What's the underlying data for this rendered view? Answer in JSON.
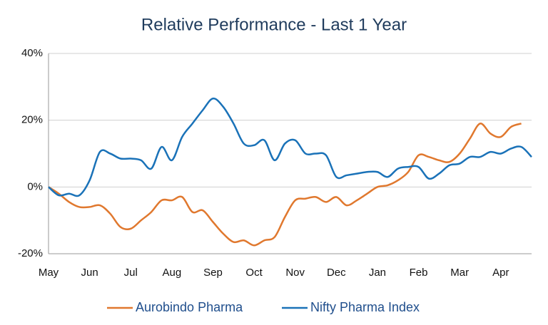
{
  "chart_data": {
    "type": "line",
    "title": "Relative Performance - Last 1 Year",
    "categories": [
      "May",
      null,
      null,
      null,
      "Jun",
      null,
      null,
      null,
      "Jul",
      null,
      null,
      null,
      "Aug",
      null,
      null,
      null,
      "Sep",
      null,
      null,
      null,
      "Oct",
      null,
      null,
      null,
      "Nov",
      null,
      null,
      null,
      "Dec",
      null,
      null,
      null,
      "Jan",
      null,
      null,
      null,
      "Feb",
      null,
      null,
      null,
      "Mar",
      null,
      null,
      null,
      "Apr",
      null,
      null,
      null
    ],
    "series": [
      {
        "name": "Aurobindo Pharma",
        "color": "#e0782e",
        "values": [
          0,
          -2,
          -4.5,
          -6,
          -6,
          -5.5,
          -8,
          -12,
          -12.5,
          -10,
          -7.5,
          -4,
          -4,
          -3,
          -7.5,
          -7,
          -10.5,
          -14,
          -16.5,
          -16,
          -17.5,
          -16,
          -15,
          -9,
          -4,
          -3.5,
          -3,
          -4.5,
          -3,
          -5.5,
          -4,
          -2,
          0,
          0.5,
          2,
          4.5,
          9.5,
          9,
          8,
          7.5,
          10,
          14.5,
          19,
          16,
          15,
          18,
          19,
          null
        ]
      },
      {
        "name": "Nifty Pharma Index",
        "color": "#1a72b8",
        "values": [
          0,
          -2.5,
          -2,
          -2.5,
          2,
          10.5,
          10,
          8.5,
          8.5,
          8,
          5.5,
          12,
          8,
          15,
          19,
          23,
          26.5,
          24,
          19,
          13,
          12.5,
          14,
          8,
          13,
          14,
          10,
          10,
          9.5,
          3,
          3.5,
          4,
          4.5,
          4.5,
          3,
          5.5,
          6,
          6,
          2.5,
          4,
          6.5,
          7,
          9,
          9,
          10.5,
          10,
          11.5,
          12,
          9
        ]
      }
    ],
    "ylim": [
      -20,
      40
    ],
    "yticks": [
      {
        "value": -20,
        "label": "-20%"
      },
      {
        "value": 0,
        "label": "0%"
      },
      {
        "value": 20,
        "label": "20%"
      },
      {
        "value": 40,
        "label": "40%"
      }
    ],
    "grid": true
  }
}
